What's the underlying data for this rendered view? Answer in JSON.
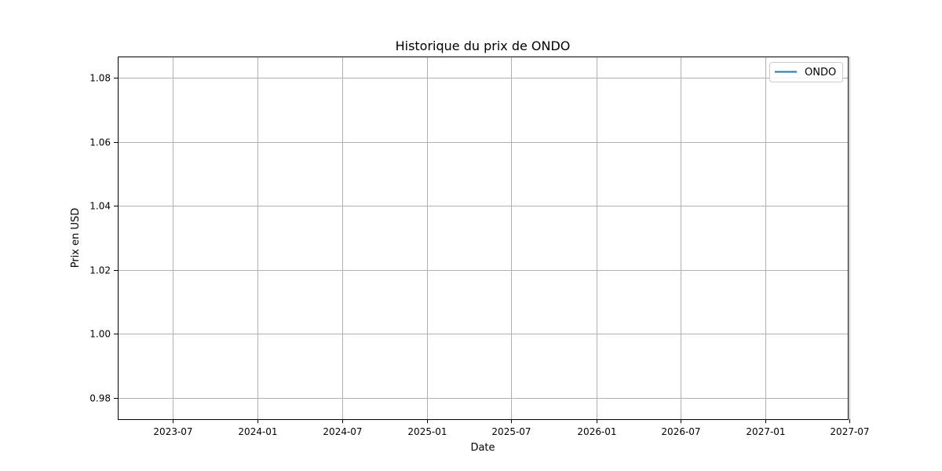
{
  "chart_data": {
    "type": "line",
    "title": "Historique du prix de ONDO",
    "xlabel": "Date",
    "ylabel": "Prix en USD",
    "x_axis_type": "date",
    "xlim": [
      "2023-03-05",
      "2027-06-27"
    ],
    "ylim": [
      0.9733,
      1.0867
    ],
    "x_ticks": [
      "2023-07",
      "2024-01",
      "2024-07",
      "2025-01",
      "2025-07",
      "2026-01",
      "2026-07",
      "2027-01",
      "2027-07"
    ],
    "y_ticks": [
      "0.98",
      "1.00",
      "1.02",
      "1.04",
      "1.06",
      "1.08"
    ],
    "grid": true,
    "legend_position": "top-right",
    "series": [
      {
        "name": "ONDO",
        "color": "#1f77b4",
        "x": [],
        "y": []
      }
    ]
  }
}
